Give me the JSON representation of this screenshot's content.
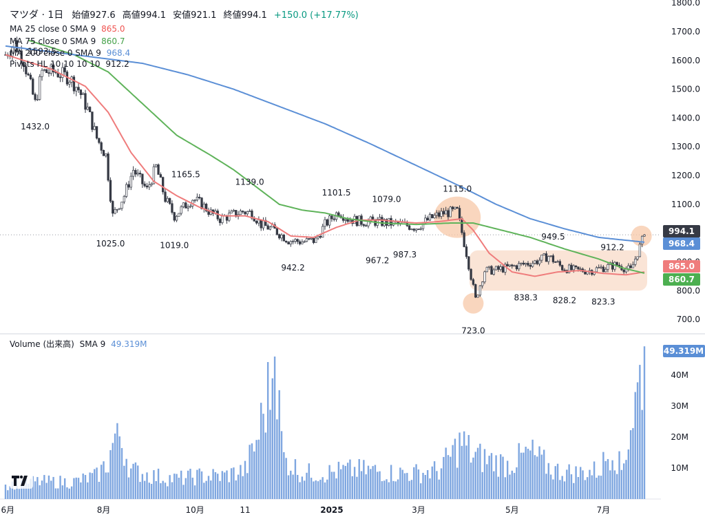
{
  "header": {
    "symbol": "マツダ · 1日",
    "open_label": "始値",
    "open": "927.6",
    "high_label": "高値",
    "high": "994.1",
    "low_label": "安値",
    "low": "921.1",
    "close_label": "終値",
    "close": "994.1",
    "change": "+150.0 (+17.77%)"
  },
  "indicators": {
    "ma25": {
      "label": "MA 25 close 0 SMA 9",
      "value": "865.0",
      "color": "#ef7c7c"
    },
    "ma75": {
      "label": "MA 75 close 0 SMA 9",
      "value": "860.7",
      "color": "#5fb35a"
    },
    "ma200": {
      "label": "MA 200 close 0 SMA 9",
      "value": "968.4",
      "color": "#5b8fd6"
    },
    "pivots": {
      "label": "Pivots HL 10 10 10 10",
      "value": "912.2"
    }
  },
  "volume_legend": {
    "label": "Volume (出来高)",
    "sma": "SMA 9",
    "value": "49.319M",
    "color": "#5b8fd6"
  },
  "price_tags": [
    {
      "value": "994.1",
      "bg": "#363a45"
    },
    {
      "value": "968.4",
      "bg": "#5b8fd6"
    },
    {
      "value": "865.0",
      "bg": "#ef7c7c"
    },
    {
      "value": "860.7",
      "bg": "#4caf50"
    }
  ],
  "volume_tag": {
    "value": "49.319M",
    "bg": "#5b8fd6"
  },
  "chart_data": {
    "type": "candlestick",
    "price_axis": {
      "min": 650,
      "max": 1810,
      "ticks": [
        "700.0",
        "800.0",
        "900.0",
        "1000.0",
        "1100.0",
        "1200.0",
        "1300.0",
        "1400.0",
        "1500.0",
        "1600.0",
        "1700.0",
        "1800.0"
      ]
    },
    "volume_axis": {
      "min": 0,
      "max": 50,
      "ticks": [
        "10M",
        "20M",
        "30M",
        "40M"
      ]
    },
    "x_labels": [
      {
        "label": "6月",
        "i": 1
      },
      {
        "label": "8月",
        "i": 43
      },
      {
        "label": "10月",
        "i": 83
      },
      {
        "label": "11",
        "i": 105
      },
      {
        "label": "2025",
        "i": 143
      },
      {
        "label": "3月",
        "i": 181
      },
      {
        "label": "5月",
        "i": 222
      },
      {
        "label": "7月",
        "i": 262
      }
    ],
    "pivot_labels": [
      {
        "text": "1593.5",
        "i": 16,
        "price": 1593.5,
        "pos": "above"
      },
      {
        "text": "1432.0",
        "i": 13,
        "price": 1432,
        "pos": "below"
      },
      {
        "text": "1165.5",
        "i": 79,
        "price": 1165.5,
        "pos": "above"
      },
      {
        "text": "1139.0",
        "i": 107,
        "price": 1139,
        "pos": "above"
      },
      {
        "text": "1101.5",
        "i": 145,
        "price": 1101.5,
        "pos": "above"
      },
      {
        "text": "1079.0",
        "i": 167,
        "price": 1079,
        "pos": "above"
      },
      {
        "text": "1115.0",
        "i": 198,
        "price": 1115,
        "pos": "above"
      },
      {
        "text": "949.5",
        "i": 240,
        "price": 949.5,
        "pos": "above"
      },
      {
        "text": "912.2",
        "i": 266,
        "price": 912.2,
        "pos": "above"
      },
      {
        "text": "1025.0",
        "i": 46,
        "price": 1025,
        "pos": "below"
      },
      {
        "text": "1019.0",
        "i": 74,
        "price": 1019,
        "pos": "below"
      },
      {
        "text": "942.2",
        "i": 126,
        "price": 942.2,
        "pos": "below"
      },
      {
        "text": "967.2",
        "i": 163,
        "price": 967.2,
        "pos": "below"
      },
      {
        "text": "987.3",
        "i": 175,
        "price": 987.3,
        "pos": "below"
      },
      {
        "text": "723.0",
        "i": 205,
        "price": 723,
        "pos": "below"
      },
      {
        "text": "838.3",
        "i": 228,
        "price": 838.3,
        "pos": "below"
      },
      {
        "text": "828.2",
        "i": 245,
        "price": 828.2,
        "pos": "below"
      },
      {
        "text": "823.3",
        "i": 262,
        "price": 823.3,
        "pos": "below"
      }
    ],
    "n_bars": 281,
    "price_keypoints": [
      [
        0,
        1620
      ],
      [
        4,
        1660
      ],
      [
        8,
        1600
      ],
      [
        13,
        1450
      ],
      [
        16,
        1560
      ],
      [
        22,
        1560
      ],
      [
        28,
        1540
      ],
      [
        32,
        1500
      ],
      [
        36,
        1430
      ],
      [
        40,
        1330
      ],
      [
        44,
        1270
      ],
      [
        47,
        1060
      ],
      [
        52,
        1130
      ],
      [
        56,
        1220
      ],
      [
        62,
        1150
      ],
      [
        66,
        1230
      ],
      [
        70,
        1120
      ],
      [
        74,
        1060
      ],
      [
        78,
        1090
      ],
      [
        82,
        1120
      ],
      [
        86,
        1100
      ],
      [
        90,
        1070
      ],
      [
        94,
        1050
      ],
      [
        98,
        1060
      ],
      [
        104,
        1075
      ],
      [
        108,
        1070
      ],
      [
        112,
        1030
      ],
      [
        118,
        1010
      ],
      [
        124,
        975
      ],
      [
        130,
        970
      ],
      [
        136,
        975
      ],
      [
        140,
        1030
      ],
      [
        146,
        1075
      ],
      [
        150,
        1050
      ],
      [
        156,
        1040
      ],
      [
        162,
        1040
      ],
      [
        168,
        1035
      ],
      [
        174,
        1030
      ],
      [
        180,
        1020
      ],
      [
        186,
        1050
      ],
      [
        192,
        1070
      ],
      [
        198,
        1075
      ],
      [
        202,
        930
      ],
      [
        206,
        770
      ],
      [
        210,
        870
      ],
      [
        214,
        870
      ],
      [
        220,
        880
      ],
      [
        226,
        890
      ],
      [
        232,
        900
      ],
      [
        238,
        920
      ],
      [
        244,
        880
      ],
      [
        250,
        870
      ],
      [
        256,
        870
      ],
      [
        262,
        880
      ],
      [
        268,
        890
      ],
      [
        274,
        870
      ],
      [
        280,
        994
      ]
    ],
    "ma25_keypoints": [
      [
        0,
        1620
      ],
      [
        20,
        1570
      ],
      [
        35,
        1510
      ],
      [
        45,
        1420
      ],
      [
        55,
        1280
      ],
      [
        65,
        1180
      ],
      [
        75,
        1130
      ],
      [
        85,
        1090
      ],
      [
        95,
        1060
      ],
      [
        105,
        1060
      ],
      [
        115,
        1040
      ],
      [
        125,
        990
      ],
      [
        135,
        985
      ],
      [
        145,
        1020
      ],
      [
        155,
        1045
      ],
      [
        165,
        1045
      ],
      [
        180,
        1035
      ],
      [
        190,
        1040
      ],
      [
        200,
        1050
      ],
      [
        205,
        1010
      ],
      [
        212,
        930
      ],
      [
        222,
        865
      ],
      [
        232,
        850
      ],
      [
        242,
        865
      ],
      [
        252,
        870
      ],
      [
        262,
        860
      ],
      [
        272,
        855
      ],
      [
        280,
        865
      ]
    ],
    "ma75_keypoints": [
      [
        10,
        1670
      ],
      [
        30,
        1620
      ],
      [
        45,
        1560
      ],
      [
        60,
        1450
      ],
      [
        75,
        1340
      ],
      [
        90,
        1270
      ],
      [
        100,
        1220
      ],
      [
        110,
        1160
      ],
      [
        120,
        1100
      ],
      [
        130,
        1080
      ],
      [
        140,
        1070
      ],
      [
        150,
        1050
      ],
      [
        165,
        1035
      ],
      [
        180,
        1030
      ],
      [
        195,
        1035
      ],
      [
        205,
        1035
      ],
      [
        215,
        1015
      ],
      [
        230,
        985
      ],
      [
        245,
        945
      ],
      [
        260,
        910
      ],
      [
        270,
        880
      ],
      [
        280,
        860.7
      ]
    ],
    "ma200_keypoints": [
      [
        0,
        1650
      ],
      [
        20,
        1630
      ],
      [
        40,
        1610
      ],
      [
        60,
        1590
      ],
      [
        80,
        1550
      ],
      [
        100,
        1500
      ],
      [
        120,
        1440
      ],
      [
        140,
        1380
      ],
      [
        160,
        1310
      ],
      [
        180,
        1235
      ],
      [
        200,
        1160
      ],
      [
        215,
        1100
      ],
      [
        230,
        1050
      ],
      [
        245,
        1015
      ],
      [
        260,
        985
      ],
      [
        280,
        968.4
      ]
    ],
    "volume_keypoints": [
      [
        0,
        5
      ],
      [
        10,
        6
      ],
      [
        20,
        6
      ],
      [
        30,
        6
      ],
      [
        40,
        8
      ],
      [
        45,
        13
      ],
      [
        49,
        25
      ],
      [
        55,
        10
      ],
      [
        65,
        8
      ],
      [
        75,
        7
      ],
      [
        85,
        8
      ],
      [
        95,
        8
      ],
      [
        105,
        10
      ],
      [
        110,
        20
      ],
      [
        118,
        46
      ],
      [
        122,
        14
      ],
      [
        130,
        9
      ],
      [
        140,
        9
      ],
      [
        150,
        10
      ],
      [
        160,
        10
      ],
      [
        170,
        9
      ],
      [
        180,
        9
      ],
      [
        190,
        10
      ],
      [
        200,
        20
      ],
      [
        205,
        15
      ],
      [
        210,
        14
      ],
      [
        220,
        12
      ],
      [
        230,
        16
      ],
      [
        240,
        10
      ],
      [
        250,
        9
      ],
      [
        260,
        10
      ],
      [
        266,
        18
      ],
      [
        270,
        10
      ],
      [
        280,
        49.3
      ]
    ]
  }
}
